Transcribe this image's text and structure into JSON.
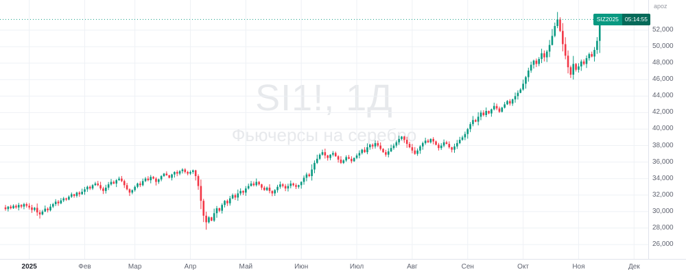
{
  "meta": {
    "unit_label": "apoz"
  },
  "watermark": {
    "title": "SI1!, 1Д",
    "subtitle": "Фьючерсы на серебро"
  },
  "price_chip": {
    "symbol": "SIZ2025",
    "countdown": "05:14:55"
  },
  "colors": {
    "up": "#089981",
    "down": "#f23645",
    "grid": "#eef1f5",
    "axis_text": "#5f6370",
    "axis_border": "#e0e3eb",
    "price_line": "#089981"
  },
  "chart_data": {
    "type": "candlestick",
    "title": "SI1!, 1Д",
    "description": "Фьючерсы на серебро",
    "legend": [],
    "grid": true,
    "price_line": 53300,
    "y_axis": {
      "min": 26000,
      "max": 52000,
      "step": 2000,
      "labels": [
        "52,000",
        "50,000",
        "48,000",
        "46,000",
        "44,000",
        "42,000",
        "40,000",
        "38,000",
        "36,000",
        "34,000",
        "32,000",
        "30,000",
        "28,000",
        "26,000"
      ]
    },
    "x_axis": {
      "labels": [
        {
          "text": "2025",
          "index": 9,
          "year": true
        },
        {
          "text": "Фев",
          "index": 30
        },
        {
          "text": "Мар",
          "index": 49
        },
        {
          "text": "Апр",
          "index": 70
        },
        {
          "text": "Май",
          "index": 91
        },
        {
          "text": "Июн",
          "index": 112
        },
        {
          "text": "Июл",
          "index": 133
        },
        {
          "text": "Авг",
          "index": 154
        },
        {
          "text": "Сен",
          "index": 175
        },
        {
          "text": "Окт",
          "index": 196
        },
        {
          "text": "Ноя",
          "index": 217
        },
        {
          "text": "Дек",
          "index": 238
        }
      ]
    },
    "first_open": 30500,
    "closes": [
      30300,
      30600,
      30400,
      30700,
      30500,
      30800,
      30600,
      30900,
      30700,
      30500,
      30200,
      30450,
      29900,
      29650,
      30000,
      30350,
      30150,
      30600,
      30900,
      31200,
      31000,
      31350,
      31600,
      31450,
      31800,
      32100,
      31900,
      32300,
      32100,
      32400,
      32700,
      33000,
      32800,
      33200,
      33400,
      33200,
      32800,
      32500,
      32900,
      33300,
      33600,
      33400,
      33800,
      34000,
      33700,
      33200,
      32700,
      32300,
      32600,
      33000,
      33400,
      33200,
      33700,
      34000,
      33800,
      34200,
      34000,
      33600,
      33900,
      34300,
      34600,
      34400,
      34100,
      34500,
      34800,
      34600,
      34900,
      35100,
      34800,
      34600,
      34800,
      35000,
      34300,
      33100,
      31300,
      29500,
      28700,
      29300,
      28900,
      29800,
      30400,
      30100,
      30800,
      31300,
      31000,
      31600,
      32000,
      31700,
      32200,
      32500,
      32300,
      32800,
      33100,
      33400,
      33200,
      33600,
      33300,
      32900,
      32600,
      32900,
      32500,
      32200,
      32600,
      33000,
      33300,
      33100,
      32800,
      33100,
      33400,
      33200,
      33000,
      33200,
      33600,
      34100,
      34500,
      34300,
      35100,
      35900,
      36400,
      36900,
      37200,
      36800,
      36500,
      36900,
      37100,
      36700,
      36300,
      35900,
      36200,
      36600,
      36400,
      36100,
      36500,
      36800,
      37100,
      37500,
      37200,
      37800,
      38100,
      37900,
      38300,
      38000,
      37600,
      37200,
      36900,
      37300,
      37700,
      38000,
      38400,
      38800,
      39100,
      38700,
      38200,
      37800,
      37400,
      37000,
      37400,
      37900,
      38300,
      38600,
      38400,
      38800,
      38500,
      38100,
      37700,
      38000,
      38400,
      38200,
      37800,
      37500,
      37900,
      38300,
      38700,
      39000,
      39400,
      40000,
      40600,
      41100,
      40900,
      41500,
      42000,
      41700,
      42200,
      41900,
      42400,
      42800,
      42500,
      42100,
      42600,
      43000,
      43400,
      43100,
      43600,
      44000,
      44400,
      44800,
      45500,
      46300,
      47100,
      47800,
      48300,
      47900,
      48500,
      49200,
      48700,
      49400,
      50200,
      51300,
      52500,
      53300,
      51900,
      50300,
      48900,
      47500,
      46600,
      47900,
      47200,
      47600,
      48200,
      47900,
      48600,
      49100,
      48800,
      49600,
      50700,
      53300
    ],
    "wick_overrides": {
      "13": {
        "low": 29150
      },
      "76": {
        "low": 27800
      },
      "209": {
        "high": 54200
      },
      "225": {
        "high": 53600
      }
    }
  }
}
